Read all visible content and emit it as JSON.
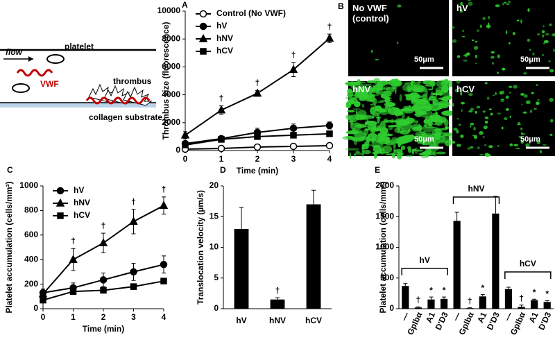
{
  "schematic": {
    "flow": "flow",
    "platelet": "platelet",
    "vwf": "VWF",
    "thrombus": "thrombus",
    "substrate": "collagen substrate"
  },
  "micrographs": {
    "panel_label": "B",
    "images": [
      {
        "label": "No VWF (control)",
        "scale_bar": "50μm"
      },
      {
        "label": "hV",
        "scale_bar": "50μm"
      },
      {
        "label": "hNV",
        "scale_bar": "50μm"
      },
      {
        "label": "hCV",
        "scale_bar": "50μm"
      }
    ]
  },
  "chart_data": [
    {
      "type": "line",
      "panel_label": "A",
      "ylabel": "Thrombus size (fluorescence)",
      "xlabel": "Time (min)",
      "x": [
        0,
        1,
        2,
        3,
        4
      ],
      "xlim": [
        0,
        4
      ],
      "xticks": [
        0,
        1,
        2,
        3,
        4
      ],
      "ylim": [
        0,
        10000
      ],
      "yticks": [
        0,
        2000,
        4000,
        6000,
        8000,
        10000
      ],
      "series": [
        {
          "name": "Control (No VWF)",
          "color": "#000000",
          "marker": "circle-open",
          "values": [
            100,
            150,
            250,
            300,
            350
          ],
          "errors": [
            50,
            50,
            50,
            50,
            50
          ]
        },
        {
          "name": "hV",
          "color": "#000000",
          "marker": "circle",
          "values": [
            500,
            850,
            1300,
            1600,
            1800
          ],
          "errors": [
            150,
            200,
            300,
            300,
            250
          ]
        },
        {
          "name": "hNV",
          "color": "#000000",
          "marker": "triangle",
          "values": [
            1100,
            2900,
            4100,
            5800,
            8050
          ],
          "errors": [
            250,
            300,
            200,
            500,
            300
          ]
        },
        {
          "name": "hCV",
          "color": "#000000",
          "marker": "square",
          "values": [
            400,
            800,
            1000,
            1100,
            1200
          ],
          "errors": [
            100,
            150,
            200,
            200,
            200
          ]
        }
      ],
      "annotations": [
        {
          "x": 1,
          "text": "†"
        },
        {
          "x": 2,
          "text": "†"
        },
        {
          "x": 3,
          "text": "†"
        },
        {
          "x": 4,
          "text": "†"
        }
      ]
    },
    {
      "type": "line",
      "panel_label": "C",
      "ylabel": "Platelet accumulation (cells/mm²)",
      "xlabel": "Time (min)",
      "x": [
        0,
        1,
        2,
        3,
        4
      ],
      "xlim": [
        0,
        4
      ],
      "xticks": [
        0,
        1,
        2,
        3,
        4
      ],
      "ylim": [
        0,
        1000
      ],
      "yticks": [
        0,
        200,
        400,
        600,
        800,
        1000
      ],
      "series": [
        {
          "name": "hV",
          "color": "#000000",
          "marker": "circle",
          "values": [
            130,
            170,
            235,
            300,
            360
          ],
          "errors": [
            30,
            40,
            55,
            70,
            70
          ]
        },
        {
          "name": "hNV",
          "color": "#000000",
          "marker": "triangle",
          "values": [
            120,
            400,
            535,
            710,
            840
          ],
          "errors": [
            30,
            90,
            80,
            100,
            70
          ]
        },
        {
          "name": "hCV",
          "color": "#000000",
          "marker": "square",
          "values": [
            70,
            140,
            150,
            180,
            225
          ],
          "errors": [
            15,
            20,
            20,
            20,
            15
          ]
        }
      ],
      "annotations": [
        {
          "x": 1,
          "text": "†"
        },
        {
          "x": 2,
          "text": "†"
        },
        {
          "x": 3,
          "text": "†"
        },
        {
          "x": 4,
          "text": "†"
        }
      ]
    },
    {
      "type": "bar",
      "panel_label": "D",
      "ylabel": "Translocation velocity (µm/s)",
      "categories": [
        "hV",
        "hNV",
        "hCV"
      ],
      "values": [
        13,
        1.5,
        17
      ],
      "errors": [
        3.5,
        0.3,
        2.3
      ],
      "markers": [
        null,
        "†",
        null
      ],
      "color": "#000000",
      "ylim": [
        0,
        20
      ],
      "yticks": [
        0,
        5,
        10,
        15,
        20
      ]
    },
    {
      "type": "bar",
      "panel_label": "E",
      "ylabel": "Platelet accumulation (cells/mm²)",
      "categories": [
        "—",
        "GpIbα",
        "A1",
        "D'D3",
        "—",
        "GpIbα",
        "A1",
        "D'D3",
        "—",
        "GpIbα",
        "A1",
        "D'D3"
      ],
      "values": [
        370,
        20,
        150,
        160,
        1430,
        10,
        200,
        1550,
        320,
        30,
        140,
        110
      ],
      "errors": [
        40,
        10,
        40,
        30,
        140,
        5,
        30,
        280,
        30,
        30,
        15,
        20
      ],
      "markers": [
        null,
        "†",
        "*",
        "*",
        null,
        "†",
        "*",
        null,
        null,
        "†",
        "*",
        "*"
      ],
      "groups": [
        {
          "name": "hV",
          "size": 4
        },
        {
          "name": "hNV",
          "size": 4
        },
        {
          "name": "hCV",
          "size": 4
        }
      ],
      "color": "#000000",
      "ylim": [
        0,
        2000
      ],
      "yticks": [
        0,
        500,
        1000,
        1500,
        2000
      ]
    }
  ]
}
